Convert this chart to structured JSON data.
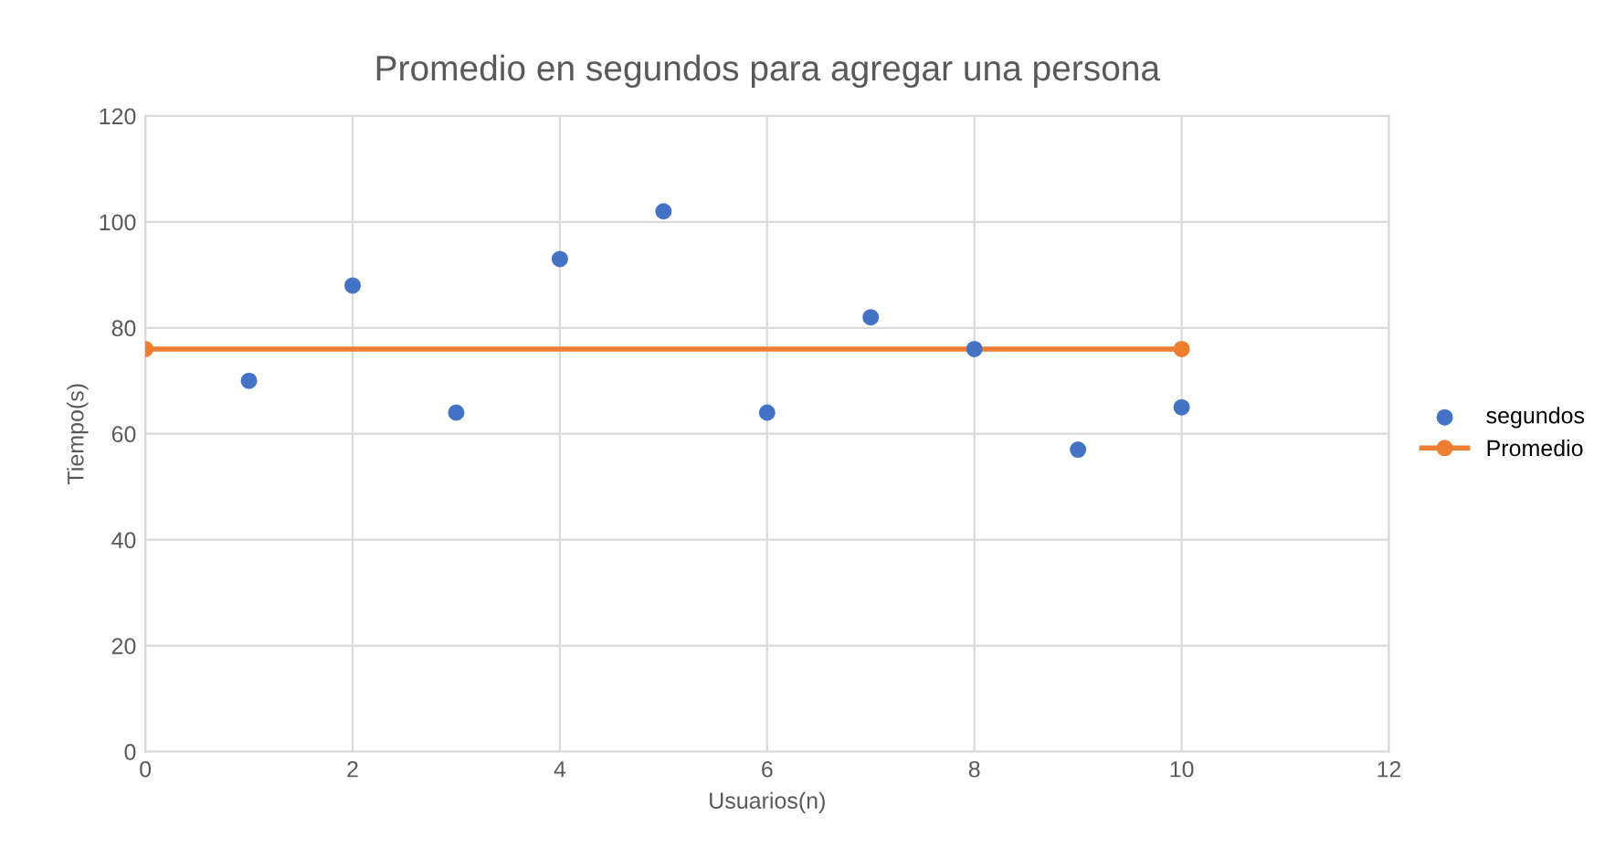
{
  "chart_data": {
    "type": "scatter",
    "title": "Promedio en segundos para agregar una persona",
    "xlabel": "Usuarios(n)",
    "ylabel": "Tiempo(s)",
    "series": [
      {
        "name": "segundos",
        "color": "#4472c4",
        "marker": "circle",
        "x": [
          1,
          2,
          3,
          4,
          5,
          6,
          7,
          8,
          9,
          10
        ],
        "values": [
          70,
          88,
          64,
          93,
          102,
          64,
          82,
          76,
          57,
          65
        ]
      },
      {
        "name": "Promedio",
        "type": "line",
        "color": "#ed7d31",
        "marker": "circle",
        "line_style": "solid",
        "x": [
          0,
          10
        ],
        "values": [
          76,
          76
        ]
      }
    ],
    "xlim": [
      0,
      12
    ],
    "xticks": [
      0,
      2,
      4,
      6,
      8,
      10,
      12
    ],
    "ylim": [
      0,
      120
    ],
    "yticks": [
      0,
      20,
      40,
      60,
      80,
      100,
      120
    ],
    "grid": true,
    "legend": "right"
  }
}
